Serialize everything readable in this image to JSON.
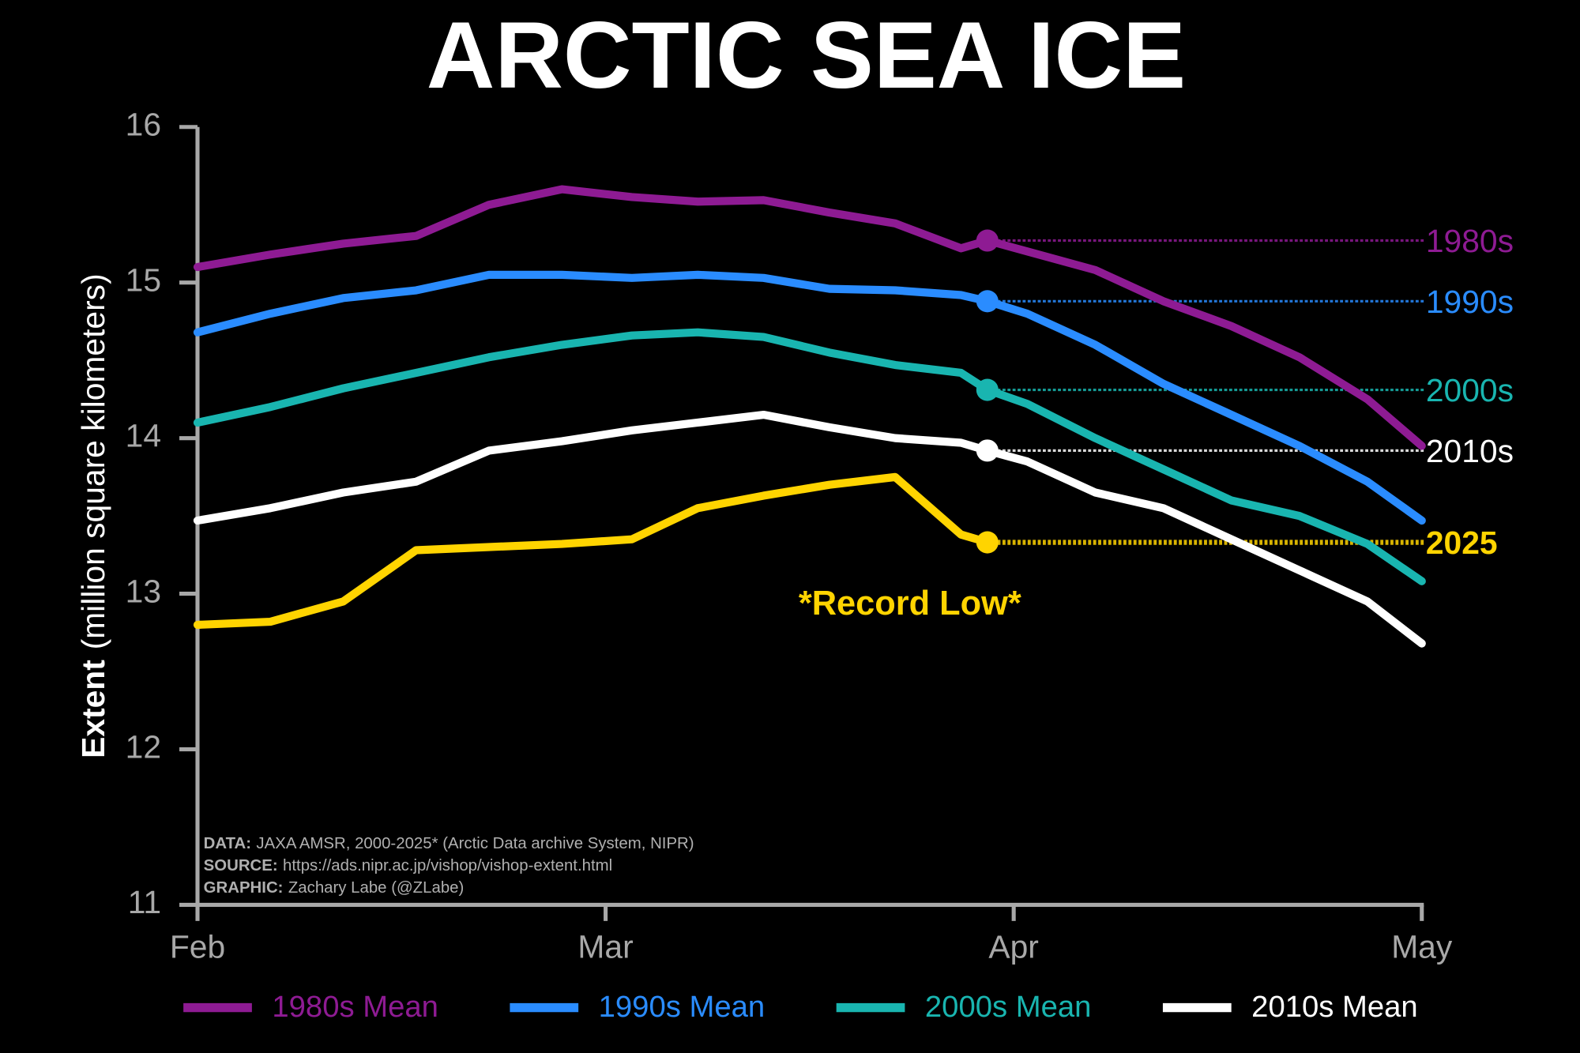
{
  "chart_data": {
    "type": "line",
    "title": "ARCTIC SEA ICE",
    "y_label_bold": "Extent",
    "y_label": "(million square kilometers)",
    "annotation": "*Record Low*",
    "source": [
      {
        "label": "DATA:",
        "text": "JAXA AMSR, 2000-2025* (Arctic Data archive System, NIPR)"
      },
      {
        "label": "SOURCE:",
        "text": "https://ads.nipr.ac.jp/vishop/vishop-extent.html"
      },
      {
        "label": "GRAPHIC:",
        "text": "Zachary Labe (@ZLabe)"
      }
    ],
    "x": [
      32,
      37,
      42,
      47,
      52,
      57,
      62,
      67,
      72,
      77,
      82,
      87,
      89,
      92,
      97,
      102,
      107,
      112,
      117,
      121
    ],
    "xlim": [
      32,
      121
    ],
    "xticks": [
      {
        "value": 32,
        "label": "Feb"
      },
      {
        "value": 60,
        "label": "Mar"
      },
      {
        "value": 91,
        "label": "Apr"
      },
      {
        "value": 121,
        "label": "May"
      }
    ],
    "ylim": [
      11,
      16
    ],
    "yticks": [
      11,
      12,
      13,
      14,
      15,
      16
    ],
    "series": [
      {
        "name": "1980s Mean",
        "label": "1980s",
        "color": "#8e1b93",
        "in_legend": true,
        "values": [
          15.1,
          15.18,
          15.25,
          15.3,
          15.5,
          15.6,
          15.55,
          15.52,
          15.53,
          15.45,
          15.38,
          15.22,
          15.27,
          15.2,
          15.08,
          14.88,
          14.72,
          14.52,
          14.25,
          13.95
        ]
      },
      {
        "name": "1990s Mean",
        "label": "1990s",
        "color": "#2a8cff",
        "in_legend": true,
        "values": [
          14.68,
          14.8,
          14.9,
          14.95,
          15.05,
          15.05,
          15.03,
          15.05,
          15.03,
          14.96,
          14.95,
          14.92,
          14.88,
          14.8,
          14.6,
          14.35,
          14.15,
          13.95,
          13.72,
          13.47
        ]
      },
      {
        "name": "2000s Mean",
        "label": "2000s",
        "color": "#19b5b0",
        "in_legend": true,
        "values": [
          14.1,
          14.2,
          14.32,
          14.42,
          14.52,
          14.6,
          14.66,
          14.68,
          14.65,
          14.55,
          14.47,
          14.42,
          14.31,
          14.22,
          14.0,
          13.8,
          13.6,
          13.5,
          13.32,
          13.08
        ]
      },
      {
        "name": "2010s Mean",
        "label": "2010s",
        "color": "#ffffff",
        "in_legend": true,
        "values": [
          13.47,
          13.55,
          13.65,
          13.72,
          13.92,
          13.98,
          14.05,
          14.1,
          14.15,
          14.07,
          14.0,
          13.97,
          13.92,
          13.85,
          13.65,
          13.55,
          13.35,
          13.15,
          12.95,
          12.68
        ]
      },
      {
        "name": "2025",
        "label": "2025",
        "color": "#ffd400",
        "in_legend": false,
        "values": [
          12.8,
          12.82,
          12.95,
          13.28,
          13.3,
          13.32,
          13.35,
          13.55,
          13.63,
          13.7,
          13.75,
          13.38,
          13.33,
          null,
          null,
          null,
          null,
          null,
          null,
          null
        ]
      }
    ]
  }
}
